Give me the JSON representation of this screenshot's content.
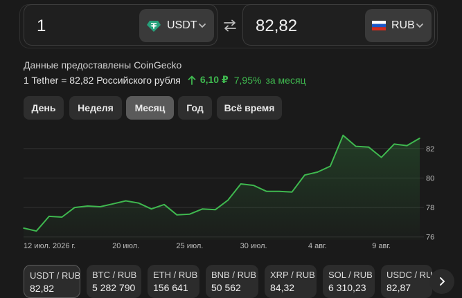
{
  "converter": {
    "from": {
      "amount": "1",
      "currency": "USDT",
      "icon": "tether-icon",
      "icon_color": "#26a17b"
    },
    "to": {
      "amount": "82,82",
      "currency": "RUB",
      "icon": "russia-flag-icon"
    },
    "swap_icon": "swap-arrows-icon"
  },
  "info": {
    "source": "Данные предоставлены CoinGecko",
    "rate_text": "1 Tether = 82,82 Российского рубля",
    "change_abs": "6,10 ₽",
    "change_pct": "7,95%",
    "change_period": "за месяц",
    "change_color": "#3fb84f"
  },
  "periods": [
    {
      "label": "День",
      "active": false
    },
    {
      "label": "Неделя",
      "active": false
    },
    {
      "label": "Месяц",
      "active": true
    },
    {
      "label": "Год",
      "active": false
    },
    {
      "label": "Всё время",
      "active": false
    }
  ],
  "chart_data": {
    "type": "area",
    "x": [
      "2026-07-12",
      "2026-07-13",
      "2026-07-14",
      "2026-07-15",
      "2026-07-16",
      "2026-07-17",
      "2026-07-18",
      "2026-07-19",
      "2026-07-20",
      "2026-07-21",
      "2026-07-22",
      "2026-07-23",
      "2026-07-24",
      "2026-07-25",
      "2026-07-26",
      "2026-07-27",
      "2026-07-28",
      "2026-07-29",
      "2026-07-30",
      "2026-07-31",
      "2026-08-01",
      "2026-08-02",
      "2026-08-03",
      "2026-08-04",
      "2026-08-05",
      "2026-08-06",
      "2026-08-07",
      "2026-08-08",
      "2026-08-09",
      "2026-08-10",
      "2026-08-11",
      "2026-08-12"
    ],
    "y": [
      76.6,
      76.4,
      77.4,
      77.35,
      78.0,
      78.1,
      78.05,
      78.25,
      78.45,
      78.3,
      77.9,
      78.2,
      77.5,
      77.55,
      77.9,
      77.85,
      78.5,
      79.6,
      79.5,
      79.1,
      79.1,
      79.05,
      80.2,
      80.4,
      80.8,
      82.9,
      82.15,
      82.1,
      81.4,
      82.3,
      82.2,
      82.7
    ],
    "xticks": [
      {
        "date": "2026-07-12",
        "label": "12 июл. 2026 г."
      },
      {
        "date": "2026-07-20",
        "label": "20 июл."
      },
      {
        "date": "2026-07-25",
        "label": "25 июл."
      },
      {
        "date": "2026-07-30",
        "label": "30 июл."
      },
      {
        "date": "2026-08-04",
        "label": "4 авг."
      },
      {
        "date": "2026-08-09",
        "label": "9 авг."
      }
    ],
    "yticks": [
      76,
      78,
      80,
      82
    ],
    "ylim": [
      75.8,
      83.4
    ],
    "line_color": "#3fb84f",
    "grid": true
  },
  "pairs": [
    {
      "name": "USDT / RUB",
      "value": "82,82",
      "active": true
    },
    {
      "name": "BTC / RUB",
      "value": "5 282 790",
      "active": false
    },
    {
      "name": "ETH / RUB",
      "value": "156 641",
      "active": false
    },
    {
      "name": "BNB / RUB",
      "value": "50 562",
      "active": false
    },
    {
      "name": "XRP / RUB",
      "value": "84,32",
      "active": false
    },
    {
      "name": "SOL / RUB",
      "value": "6 310,23",
      "active": false
    },
    {
      "name": "USDC / RUB",
      "value": "82,87",
      "active": false
    }
  ],
  "next_icon": "chevron-right-icon"
}
